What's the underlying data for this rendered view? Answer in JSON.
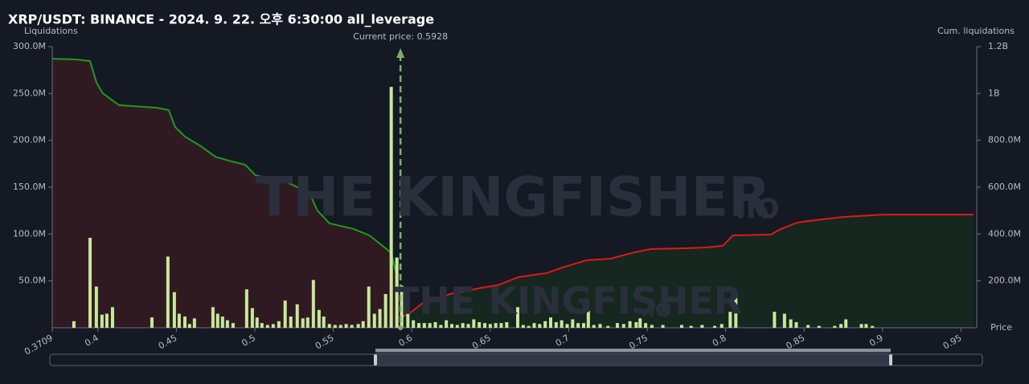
{
  "chart_data": {
    "type": "bar",
    "title": "XRP/USDT: BINANCE - 2024. 9. 22. 오후 6:30:00 all_leverage",
    "y_label": "Liquidations",
    "y2_label": "Cum. liquidations",
    "x_label": "Price",
    "watermark": "THE KINGFISHER",
    "watermark_suffix": ".IO",
    "annotation": {
      "text": "Current price: 0.5928",
      "value": 0.5928,
      "color": "#7fae6a"
    },
    "xlim": [
      0.3709,
      0.96
    ],
    "xticks": [
      0.3709,
      0.4,
      0.45,
      0.5,
      0.55,
      0.6,
      0.65,
      0.7,
      0.75,
      0.8,
      0.85,
      0.9,
      0.95
    ],
    "ylim": [
      0,
      300
    ],
    "yticks": [
      {
        "value": 50,
        "label": "50.0M"
      },
      {
        "value": 100,
        "label": "100.0M"
      },
      {
        "value": 150,
        "label": "150.0M"
      },
      {
        "value": 200,
        "label": "200.0M"
      },
      {
        "value": 250,
        "label": "250.0M"
      },
      {
        "value": 300,
        "label": "300.0M"
      }
    ],
    "y2lim": [
      0,
      1200
    ],
    "y2ticks": [
      {
        "value": 200,
        "label": "200.0M"
      },
      {
        "value": 400,
        "label": "400.0M"
      },
      {
        "value": 600,
        "label": "600.0M"
      },
      {
        "value": 800,
        "label": "800.0M"
      },
      {
        "value": 1000,
        "label": "1B"
      },
      {
        "value": 1200,
        "label": "1.2B"
      }
    ],
    "grid": false,
    "series": [
      {
        "type": "bar",
        "color": "#c8e89a",
        "x": [
          0.3847,
          0.395,
          0.399,
          0.4026,
          0.4057,
          0.4093,
          0.4344,
          0.4446,
          0.4487,
          0.4518,
          0.4554,
          0.4584,
          0.4615,
          0.4733,
          0.4763,
          0.4794,
          0.4825,
          0.4861,
          0.4948,
          0.4984,
          0.5014,
          0.5045,
          0.5081,
          0.5117,
          0.5153,
          0.5193,
          0.5229,
          0.527,
          0.5306,
          0.5337,
          0.5373,
          0.5409,
          0.5439,
          0.5475,
          0.5511,
          0.5547,
          0.5582,
          0.5618,
          0.5659,
          0.569,
          0.5726,
          0.5762,
          0.5797,
          0.5833,
          0.5869,
          0.5905,
          0.5936,
          0.5975,
          0.601,
          0.6045,
          0.608,
          0.6115,
          0.615,
          0.6185,
          0.622,
          0.6255,
          0.629,
          0.6325,
          0.636,
          0.6395,
          0.643,
          0.6465,
          0.65,
          0.6535,
          0.657,
          0.6605,
          0.6675,
          0.671,
          0.6745,
          0.678,
          0.6815,
          0.685,
          0.6885,
          0.692,
          0.6955,
          0.699,
          0.7025,
          0.706,
          0.7095,
          0.7125,
          0.716,
          0.72,
          0.725,
          0.731,
          0.735,
          0.739,
          0.743,
          0.7455,
          0.749,
          0.753,
          0.76,
          0.772,
          0.778,
          0.785,
          0.793,
          0.7975,
          0.8029,
          0.8065,
          0.8311,
          0.8375,
          0.8415,
          0.845,
          0.8525,
          0.8595,
          0.8695,
          0.8735,
          0.8766,
          0.8865,
          0.8895,
          0.8935
        ],
        "values": [
          7,
          96,
          44,
          14,
          15,
          22,
          11,
          76,
          38,
          15,
          12,
          4,
          10,
          22,
          15,
          12,
          8,
          5,
          41,
          21,
          11,
          5,
          3,
          4,
          7,
          29,
          12,
          25,
          10,
          11,
          51,
          19,
          12,
          4,
          3,
          3,
          4,
          3,
          4,
          7,
          44,
          15,
          20,
          36,
          257,
          75,
          45,
          20,
          8,
          5,
          5,
          5,
          6,
          3,
          8,
          4,
          3,
          5,
          4,
          9,
          6,
          5,
          4,
          5,
          5,
          6,
          22,
          3,
          2,
          5,
          4,
          7,
          11,
          6,
          8,
          4,
          9,
          5,
          5,
          18,
          3,
          4,
          2,
          5,
          4,
          7,
          6,
          10,
          5,
          3,
          3,
          3,
          2,
          3,
          2,
          4,
          17,
          32,
          17,
          15,
          9,
          6,
          3,
          2,
          2,
          4,
          9,
          4,
          4,
          2
        ]
      },
      {
        "type": "area",
        "axis": "y2",
        "color": "#1e9a1e",
        "fill": "#301a22",
        "x": [
          0.3709,
          0.3863,
          0.395,
          0.3991,
          0.4031,
          0.4134,
          0.4374,
          0.4451,
          0.4492,
          0.4554,
          0.4656,
          0.4748,
          0.4835,
          0.4938,
          0.5004,
          0.5117,
          0.5219,
          0.5347,
          0.5398,
          0.5475,
          0.5628,
          0.5731,
          0.5808,
          0.5869,
          0.59
        ],
        "values": [
          1148,
          1145,
          1138,
          1046,
          1001,
          950,
          939,
          929,
          857,
          816,
          775,
          730,
          713,
          696,
          651,
          634,
          617,
          576,
          501,
          446,
          422,
          394,
          353,
          319,
          233
        ]
      },
      {
        "type": "area",
        "axis": "y2",
        "color": "#e01818",
        "fill": "#15271f",
        "x": [
          0.5936,
          0.5987,
          0.6064,
          0.6166,
          0.6243,
          0.6345,
          0.6448,
          0.655,
          0.6678,
          0.6857,
          0.6959,
          0.7113,
          0.7267,
          0.742,
          0.7522,
          0.7727,
          0.7881,
          0.7983,
          0.8045,
          0.829,
          0.8341,
          0.8444,
          0.8495,
          0.8751,
          0.9007,
          0.958
        ],
        "values": [
          45,
          62,
          103,
          123,
          144,
          158,
          171,
          182,
          216,
          233,
          257,
          288,
          295,
          322,
          336,
          339,
          343,
          350,
          394,
          398,
          418,
          446,
          453,
          473,
          483,
          483
        ]
      }
    ]
  }
}
